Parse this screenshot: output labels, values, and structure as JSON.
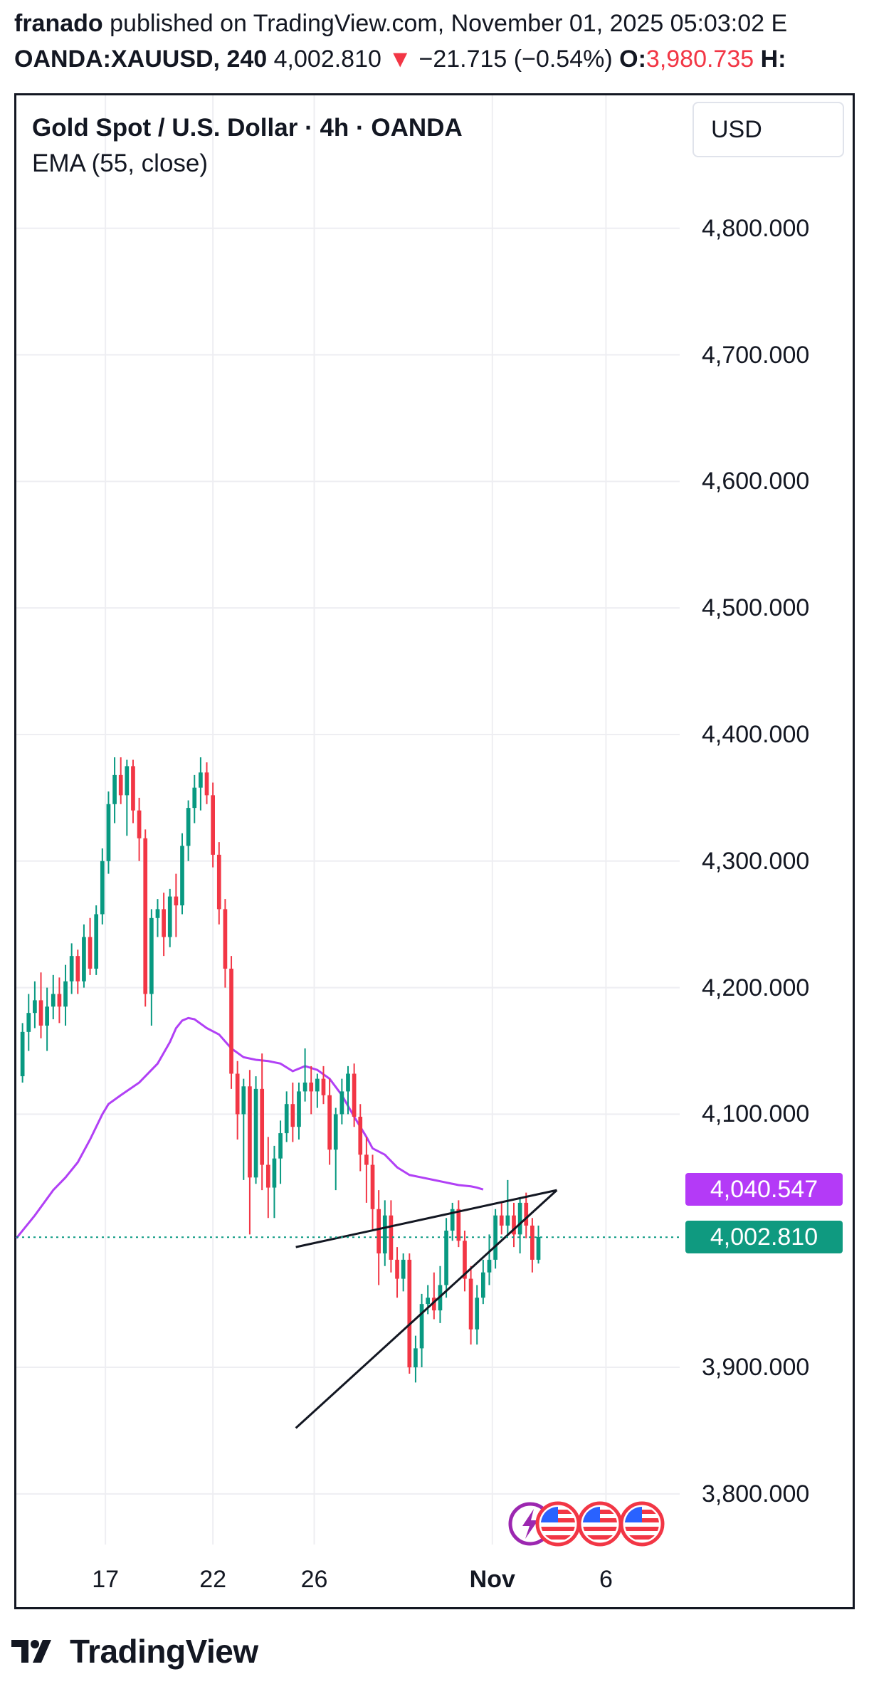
{
  "header": {
    "author": "franado",
    "published_text": "published on TradingView.com, November 01, 2025 05:03:02 E",
    "symbol": "OANDA:XAUUSD, 240",
    "price": "4,002.810",
    "change_arrow": "▼",
    "change": "−21.715 (−0.54%)",
    "open_label": "O:",
    "open_value": "3,980.735",
    "high_label": "H:"
  },
  "legend": {
    "title": "Gold Spot / U.S. Dollar · 4h · OANDA",
    "indicator": "EMA (55, close)"
  },
  "currency_button": "USD",
  "price_tags": {
    "ema_value": "4,040.547",
    "last_price": "4,002.810"
  },
  "footer": {
    "brand": "TradingView"
  },
  "icons": [
    "lightning-event-icon",
    "us-flag-icon",
    "us-flag-icon",
    "us-flag-icon"
  ],
  "colors": {
    "up": "#089981",
    "down": "#f23645",
    "ema": "#b140f5",
    "ema_tag": "#b43af7",
    "price_tag": "#0f9a80",
    "grid": "#eeeef2",
    "trendline": "#131722"
  },
  "chart_data": {
    "type": "candlestick",
    "title": "Gold Spot / U.S. Dollar · 4h · OANDA",
    "symbol": "OANDA:XAUUSD",
    "interval": "4h",
    "y_ticks": [
      4800,
      4700,
      4600,
      4500,
      4400,
      4300,
      4200,
      4100,
      3900,
      3800
    ],
    "y_tick_labels": [
      "4,800.000",
      "4,700.000",
      "4,600.000",
      "4,500.000",
      "4,400.000",
      "4,300.000",
      "4,200.000",
      "4,100.000",
      "3,900.000",
      "3,800.000"
    ],
    "ylim": [
      3760,
      4905
    ],
    "x_ticks": [
      {
        "label": "17",
        "i": 13.5
      },
      {
        "label": "22",
        "i": 31
      },
      {
        "label": "26",
        "i": 47.5
      },
      {
        "label": "Nov",
        "i": 76.5
      },
      {
        "label": "6",
        "i": 95
      }
    ],
    "xlim": [
      -1,
      107
    ],
    "candles": [
      [
        4130,
        4172,
        4125,
        4165
      ],
      [
        4165,
        4195,
        4150,
        4180
      ],
      [
        4180,
        4205,
        4168,
        4190
      ],
      [
        4190,
        4212,
        4160,
        4170
      ],
      [
        4170,
        4200,
        4150,
        4185
      ],
      [
        4185,
        4210,
        4175,
        4195
      ],
      [
        4195,
        4208,
        4172,
        4185
      ],
      [
        4185,
        4218,
        4170,
        4205
      ],
      [
        4205,
        4235,
        4195,
        4225
      ],
      [
        4225,
        4230,
        4195,
        4205
      ],
      [
        4205,
        4250,
        4200,
        4240
      ],
      [
        4240,
        4255,
        4210,
        4215
      ],
      [
        4215,
        4265,
        4210,
        4258
      ],
      [
        4258,
        4310,
        4250,
        4300
      ],
      [
        4300,
        4355,
        4290,
        4345
      ],
      [
        4345,
        4382,
        4330,
        4368
      ],
      [
        4368,
        4382,
        4345,
        4352
      ],
      [
        4352,
        4380,
        4320,
        4375
      ],
      [
        4375,
        4380,
        4330,
        4340
      ],
      [
        4340,
        4350,
        4300,
        4318
      ],
      [
        4318,
        4325,
        4185,
        4195
      ],
      [
        4195,
        4262,
        4170,
        4255
      ],
      [
        4255,
        4270,
        4240,
        4262
      ],
      [
        4262,
        4275,
        4225,
        4240
      ],
      [
        4240,
        4278,
        4232,
        4272
      ],
      [
        4272,
        4290,
        4240,
        4265
      ],
      [
        4265,
        4322,
        4258,
        4312
      ],
      [
        4312,
        4348,
        4300,
        4342
      ],
      [
        4342,
        4368,
        4330,
        4358
      ],
      [
        4358,
        4382,
        4340,
        4370
      ],
      [
        4370,
        4378,
        4345,
        4352
      ],
      [
        4352,
        4362,
        4295,
        4305
      ],
      [
        4305,
        4315,
        4250,
        4262
      ],
      [
        4262,
        4270,
        4200,
        4215
      ],
      [
        4215,
        4225,
        4120,
        4132
      ],
      [
        4132,
        4142,
        4080,
        4100
      ],
      [
        4100,
        4128,
        4048,
        4122
      ],
      [
        4122,
        4135,
        4005,
        4050
      ],
      [
        4050,
        4130,
        4045,
        4120
      ],
      [
        4120,
        4148,
        4040,
        4060
      ],
      [
        4060,
        4082,
        4018,
        4042
      ],
      [
        4042,
        4075,
        4018,
        4065
      ],
      [
        4065,
        4095,
        4045,
        4085
      ],
      [
        4085,
        4118,
        4078,
        4108
      ],
      [
        4108,
        4125,
        4078,
        4090
      ],
      [
        4090,
        4125,
        4080,
        4118
      ],
      [
        4118,
        4152,
        4110,
        4125
      ],
      [
        4125,
        4138,
        4100,
        4118
      ],
      [
        4118,
        4132,
        4105,
        4128
      ],
      [
        4128,
        4138,
        4108,
        4115
      ],
      [
        4115,
        4128,
        4060,
        4072
      ],
      [
        4072,
        4105,
        4040,
        4100
      ],
      [
        4100,
        4128,
        4092,
        4118
      ],
      [
        4118,
        4138,
        4100,
        4132
      ],
      [
        4132,
        4140,
        4090,
        4098
      ],
      [
        4098,
        4108,
        4055,
        4068
      ],
      [
        4068,
        4082,
        4030,
        4060
      ],
      [
        4060,
        4068,
        4008,
        4025
      ],
      [
        4025,
        4040,
        3965,
        3990
      ],
      [
        3990,
        4032,
        3980,
        4020
      ],
      [
        4020,
        4032,
        3975,
        3985
      ],
      [
        3985,
        3995,
        3955,
        3970
      ],
      [
        3970,
        3990,
        3960,
        3985
      ],
      [
        3985,
        3990,
        3895,
        3900
      ],
      [
        3900,
        3925,
        3888,
        3915
      ],
      [
        3915,
        3958,
        3900,
        3950
      ],
      [
        3950,
        3965,
        3942,
        3955
      ],
      [
        3955,
        3975,
        3938,
        3945
      ],
      [
        3945,
        3980,
        3935,
        3965
      ],
      [
        3965,
        4018,
        3955,
        4008
      ],
      [
        4008,
        4030,
        4000,
        4025
      ],
      [
        4025,
        4032,
        3995,
        4000
      ],
      [
        4000,
        4008,
        3960,
        3970
      ],
      [
        3970,
        3980,
        3918,
        3930
      ],
      [
        3930,
        3965,
        3918,
        3955
      ],
      [
        3955,
        3985,
        3950,
        3975
      ],
      [
        3975,
        4005,
        3965,
        3985
      ],
      [
        3985,
        4025,
        3978,
        4020
      ],
      [
        4020,
        4030,
        4005,
        4012
      ],
      [
        4012,
        4048,
        4005,
        4020
      ],
      [
        4020,
        4030,
        3995,
        4005
      ],
      [
        4005,
        4034,
        3990,
        4030
      ],
      [
        4030,
        4038,
        4002,
        4012
      ],
      [
        4012,
        4018,
        3975,
        3985
      ],
      [
        3985,
        4012,
        3982,
        4003
      ]
    ],
    "ema_55": [
      [
        -1,
        4002
      ],
      [
        2,
        4020
      ],
      [
        5,
        4040
      ],
      [
        7,
        4050
      ],
      [
        9,
        4062
      ],
      [
        11,
        4080
      ],
      [
        13,
        4100
      ],
      [
        14,
        4108
      ],
      [
        16,
        4115
      ],
      [
        19,
        4125
      ],
      [
        22,
        4140
      ],
      [
        24,
        4157
      ],
      [
        25,
        4168
      ],
      [
        26,
        4174
      ],
      [
        27,
        4176
      ],
      [
        28,
        4175
      ],
      [
        30,
        4168
      ],
      [
        32,
        4163
      ],
      [
        34,
        4152
      ],
      [
        36,
        4145
      ],
      [
        38,
        4143
      ],
      [
        40,
        4142
      ],
      [
        42,
        4140
      ],
      [
        44,
        4134
      ],
      [
        46,
        4138
      ],
      [
        48,
        4135
      ],
      [
        50,
        4128
      ],
      [
        52,
        4115
      ],
      [
        54,
        4098
      ],
      [
        56,
        4082
      ],
      [
        57,
        4073
      ],
      [
        59,
        4068
      ],
      [
        61,
        4058
      ],
      [
        63,
        4052
      ],
      [
        65,
        4050
      ],
      [
        67,
        4048
      ],
      [
        69,
        4046
      ],
      [
        71,
        4044
      ],
      [
        73,
        4043
      ],
      [
        74,
        4042
      ],
      [
        75,
        4040.5
      ]
    ],
    "trendlines": [
      {
        "from": [
          44.5,
          3995
        ],
        "to": [
          87,
          4040
        ]
      },
      {
        "from": [
          44.5,
          3852
        ],
        "to": [
          87,
          4040
        ]
      }
    ],
    "last_price": 4002.81,
    "ema_last": 4040.547
  }
}
